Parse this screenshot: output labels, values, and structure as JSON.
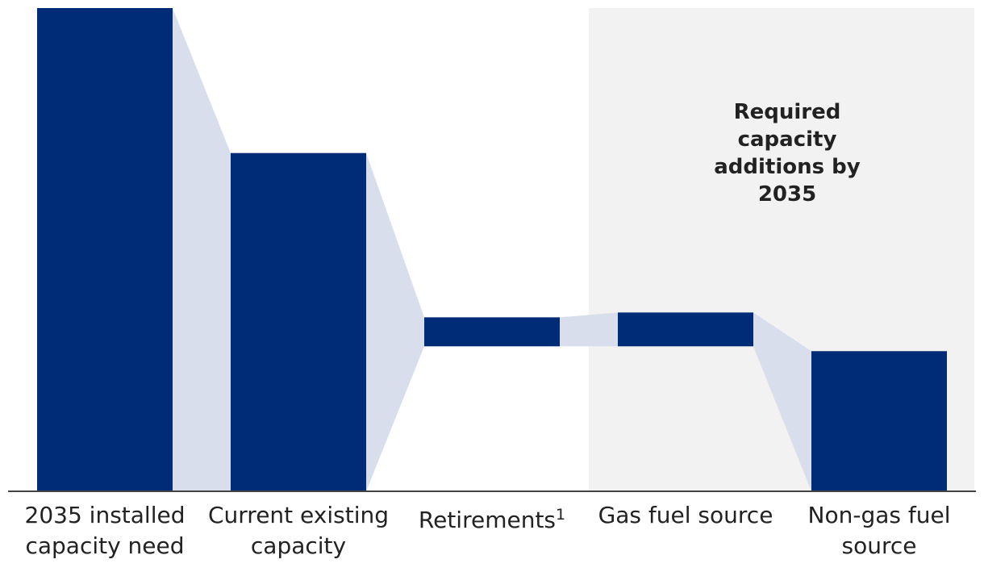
{
  "chart_data": {
    "type": "waterfall",
    "categories": [
      "2035 installed capacity need",
      "Current existing capacity",
      "Retirements",
      "Gas fuel source",
      "Non-gas fuel source"
    ],
    "category_lines": [
      [
        "2035 installed",
        "capacity need"
      ],
      [
        "Current existing",
        "capacity"
      ],
      [
        "Retirements"
      ],
      [
        "Gas fuel source"
      ],
      [
        "Non-gas fuel",
        "source"
      ]
    ],
    "footnote_marker": "1",
    "footnote_on_index": 2,
    "bars": [
      {
        "start": 0,
        "end": 100
      },
      {
        "start": 0,
        "end": 70
      },
      {
        "start": 30,
        "end": 36
      },
      {
        "start": 30,
        "end": 37
      },
      {
        "start": 0,
        "end": 29
      }
    ],
    "ylim": [
      0,
      100
    ],
    "highlight_region": {
      "label": "Required capacity additions by 2035",
      "label_lines": [
        "Required",
        "capacity",
        "additions by",
        "2035"
      ],
      "from_index": 3,
      "to_index": 4
    },
    "axis_labels_shown": false,
    "grid": false
  },
  "colors": {
    "bar": "#002C77",
    "connector": "#D6DCEA",
    "region": "#F2F2F2",
    "axis": "#444444",
    "text": "#222222"
  }
}
